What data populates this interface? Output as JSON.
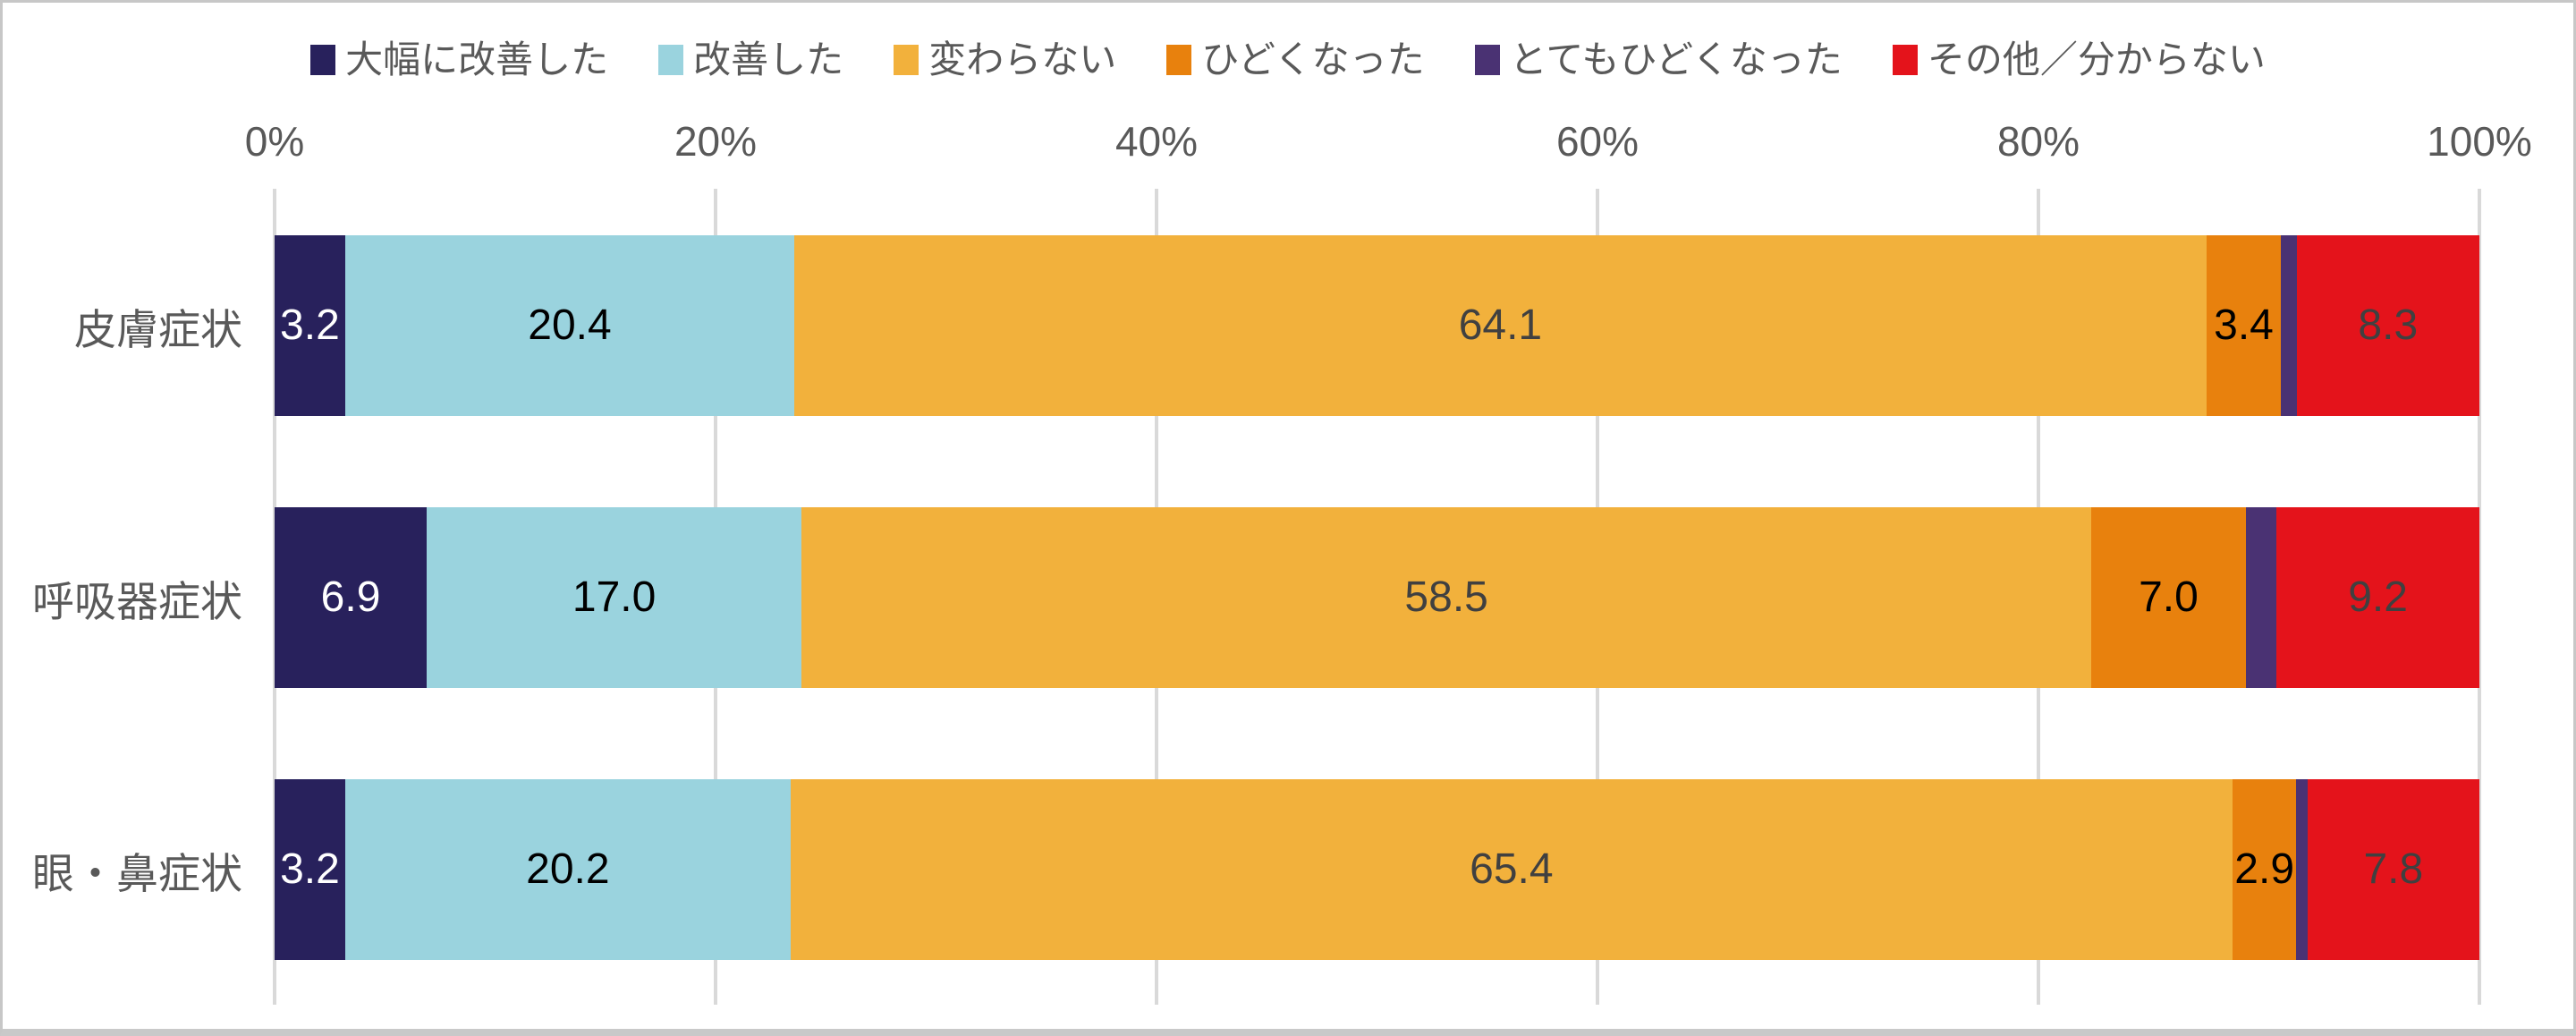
{
  "chart_data": {
    "type": "bar",
    "variant": "horizontal-stacked-100pct",
    "unit": "%",
    "categories": [
      "皮膚症状",
      "呼吸器症状",
      "眼・鼻症状"
    ],
    "series": [
      {
        "name": "大幅に改善した",
        "color": "#28215c",
        "label_color": "#ffffff",
        "values": [
          3.2,
          6.9,
          3.2
        ]
      },
      {
        "name": "改善した",
        "color": "#9ad3de",
        "label_color": "#000000",
        "values": [
          20.4,
          17.0,
          20.2
        ]
      },
      {
        "name": "変わらない",
        "color": "#f2b13c",
        "label_color": "#404040",
        "values": [
          64.1,
          58.5,
          65.4
        ]
      },
      {
        "name": "ひどくなった",
        "color": "#e8810d",
        "label_color": "#000000",
        "values": [
          3.4,
          7.0,
          2.9
        ]
      },
      {
        "name": "とてもひどくなった",
        "color": "#4a3273",
        "label_color": "#404040",
        "values": [
          0.7,
          1.4,
          0.5
        ],
        "label_placement": "outside-right-low"
      },
      {
        "name": "その他／分からない",
        "color": "#e4131b",
        "label_color": "#404040",
        "values": [
          8.3,
          9.2,
          7.8
        ]
      }
    ],
    "x_axis": {
      "min": 0,
      "max": 100,
      "tick_labels": [
        "0%",
        "20%",
        "40%",
        "60%",
        "80%",
        "100%"
      ],
      "text_color": "#595959"
    },
    "legend": {
      "position": "top",
      "text_color": "#595959"
    },
    "grid": {
      "show": true,
      "color": "#d9d9d9"
    },
    "value_label_decimals": 1
  }
}
